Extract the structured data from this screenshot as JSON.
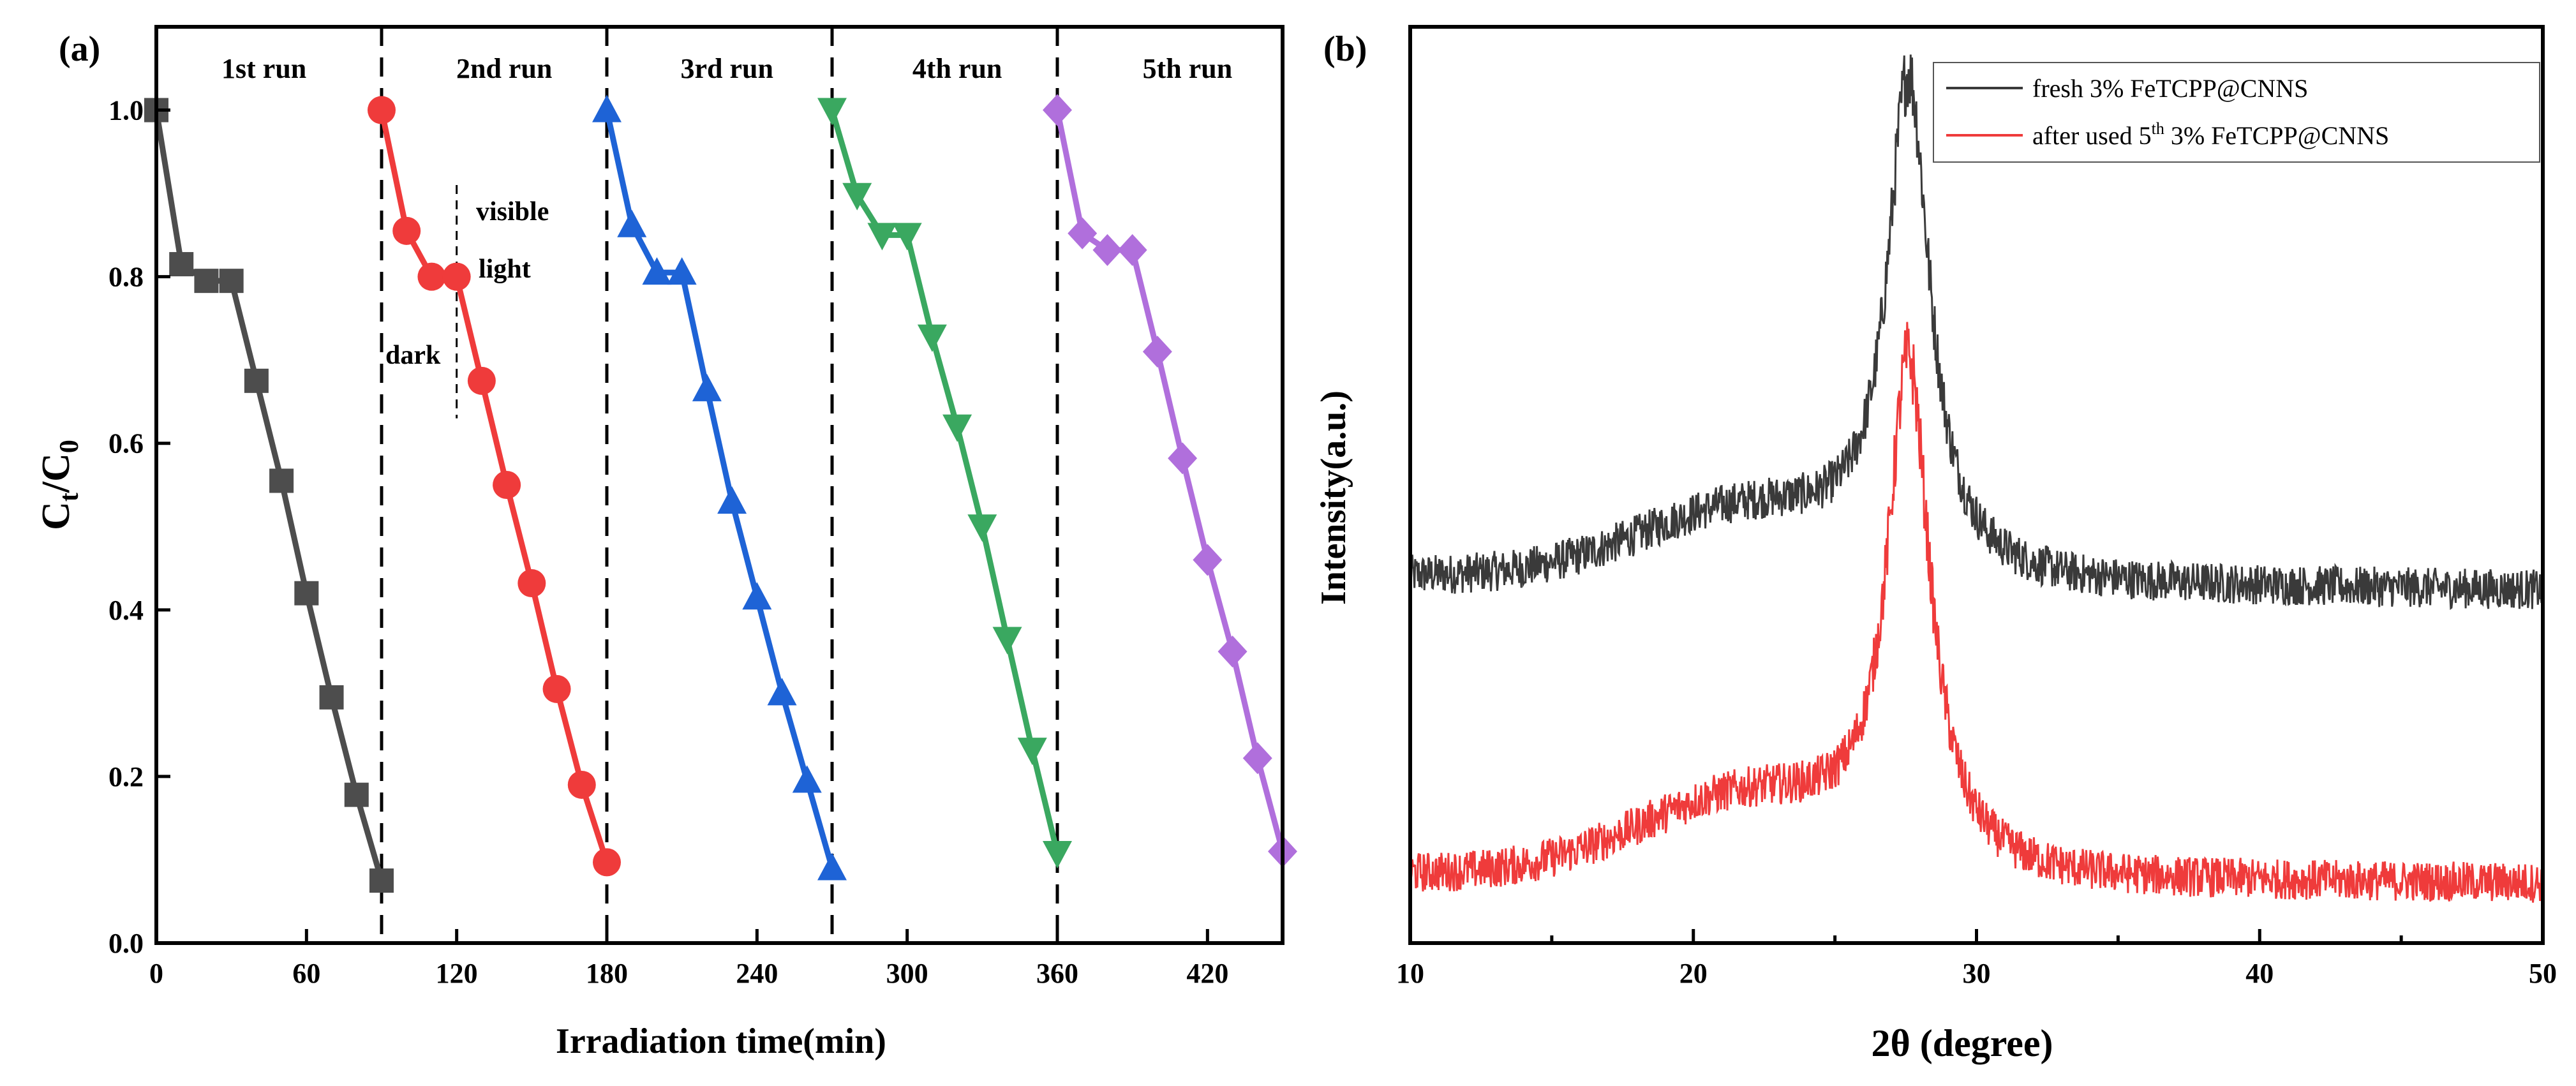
{
  "chart_data": [
    {
      "type": "line",
      "panel_label": "(a)",
      "xlabel": "Irradiation time(min)",
      "ylabel_main": "C",
      "ylabel_sub1": "t",
      "ylabel_sep": "/C",
      "ylabel_sub2": "0",
      "xlim": [
        0,
        450
      ],
      "ylim": [
        0,
        1.1
      ],
      "xticks": [
        0,
        60,
        120,
        180,
        240,
        300,
        360,
        420
      ],
      "yticks": [
        0.0,
        0.2,
        0.4,
        0.6,
        0.8,
        1.0
      ],
      "dividers": [
        90,
        180,
        270,
        360
      ],
      "run_labels": [
        {
          "text": "1st run",
          "x": 43
        },
        {
          "text": "2nd run",
          "x": 139
        },
        {
          "text": "3rd run",
          "x": 228
        },
        {
          "text": "4th run",
          "x": 320
        },
        {
          "text": "5th run",
          "x": 412
        }
      ],
      "annotations": {
        "visible": "visible",
        "light": "light",
        "dark": "dark",
        "marker_x": 120
      },
      "series": [
        {
          "name": "1st run",
          "color": "#4d4d4d",
          "marker": "square",
          "x": [
            0,
            10,
            20,
            30,
            40,
            50,
            60,
            70,
            80,
            90
          ],
          "y": [
            1.0,
            0.815,
            0.795,
            0.795,
            0.675,
            0.555,
            0.42,
            0.295,
            0.178,
            0.075
          ]
        },
        {
          "name": "2nd run",
          "color": "#ef3b3b",
          "marker": "circle",
          "x": [
            90,
            100,
            110,
            120,
            130,
            140,
            150,
            160,
            170,
            180
          ],
          "y": [
            1.0,
            0.855,
            0.8,
            0.8,
            0.675,
            0.55,
            0.432,
            0.305,
            0.19,
            0.097
          ]
        },
        {
          "name": "3rd run",
          "color": "#1e63d6",
          "marker": "triangle-up",
          "x": [
            180,
            190,
            200,
            210,
            220,
            230,
            240,
            250,
            260,
            270
          ],
          "y": [
            1.0,
            0.862,
            0.805,
            0.805,
            0.665,
            0.53,
            0.415,
            0.3,
            0.195,
            0.09
          ]
        },
        {
          "name": "4th run",
          "color": "#3aa860",
          "marker": "triangle-down",
          "x": [
            270,
            280,
            290,
            300,
            310,
            320,
            330,
            340,
            350,
            360
          ],
          "y": [
            1.0,
            0.898,
            0.85,
            0.85,
            0.728,
            0.62,
            0.5,
            0.365,
            0.232,
            0.108
          ]
        },
        {
          "name": "5th run",
          "color": "#b06fdc",
          "marker": "diamond",
          "x": [
            360,
            370,
            380,
            390,
            400,
            410,
            420,
            430,
            440,
            450
          ],
          "y": [
            1.0,
            0.852,
            0.832,
            0.832,
            0.71,
            0.582,
            0.46,
            0.35,
            0.222,
            0.11
          ]
        }
      ]
    },
    {
      "type": "line",
      "panel_label": "(b)",
      "xlabel": "2θ (degree)",
      "ylabel": "Intensity(a.u.)",
      "xlim": [
        10,
        50
      ],
      "ylim": [
        0,
        1.0
      ],
      "xticks": [
        10,
        20,
        30,
        40,
        50
      ],
      "yticks": [],
      "series": [
        {
          "name": "fresh 3% FeTCPP@CNNS",
          "color": "#3a3a3a",
          "baseline_left": 0.4,
          "baseline_right": 0.385,
          "shoulder_amp": 0.075,
          "peak_x": 27.6,
          "peak_height": 0.53,
          "noise": 0.022
        },
        {
          "name": "after used 5th 3% FeTCPP@CNNS",
          "color": "#ef3b3b",
          "baseline_left": 0.075,
          "baseline_right": 0.065,
          "shoulder_amp": 0.085,
          "peak_x": 27.6,
          "peak_height": 0.54,
          "noise": 0.022
        }
      ],
      "legend": {
        "placement": "top-right",
        "entries": [
          {
            "text": "fresh 3% FeTCPP@CNNS"
          },
          {
            "pre": "after used 5",
            "sup": "th",
            "post": " 3% FeTCPP@CNNS"
          }
        ]
      }
    }
  ]
}
